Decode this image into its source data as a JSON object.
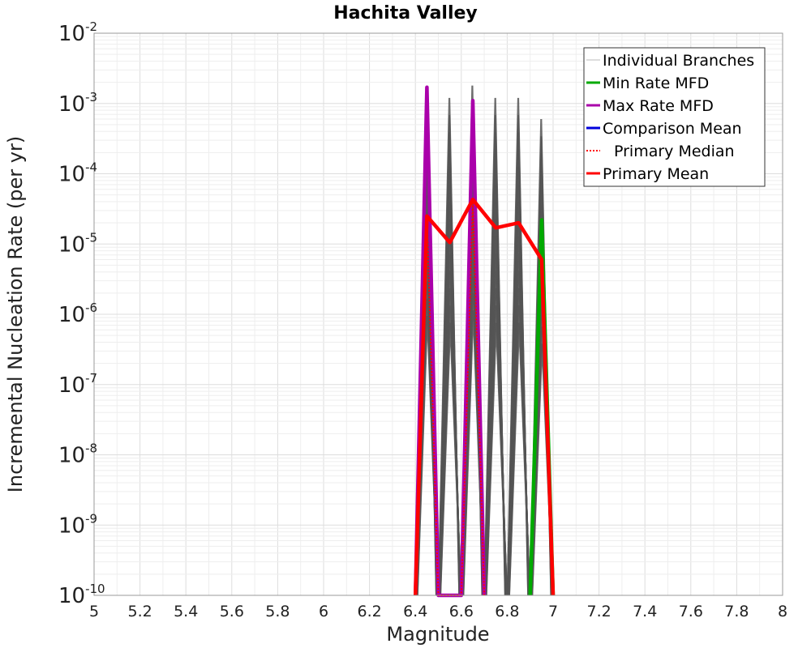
{
  "chart_data": {
    "type": "line",
    "title": "Hachita Valley",
    "xlabel": "Magnitude",
    "ylabel": "Incremental Nucleation Rate (per yr)",
    "xlim": [
      5,
      8
    ],
    "ylim": [
      1e-10,
      0.01
    ],
    "yscale": "log",
    "grid": true,
    "legend_position": "top-right",
    "x_ticks": [
      "5",
      "5.2",
      "5.4",
      "5.6",
      "5.8",
      "6",
      "6.2",
      "6.4",
      "6.6",
      "6.8",
      "7",
      "7.2",
      "7.4",
      "7.6",
      "7.8",
      "8"
    ],
    "y_ticks": [
      {
        "base": "10",
        "exp": "-10"
      },
      {
        "base": "10",
        "exp": "-9"
      },
      {
        "base": "10",
        "exp": "-8"
      },
      {
        "base": "10",
        "exp": "-7"
      },
      {
        "base": "10",
        "exp": "-6"
      },
      {
        "base": "10",
        "exp": "-5"
      },
      {
        "base": "10",
        "exp": "-4"
      },
      {
        "base": "10",
        "exp": "-3"
      },
      {
        "base": "10",
        "exp": "-2"
      }
    ],
    "series": [
      {
        "name": "Individual Branches",
        "style": "thin",
        "color": "#555555",
        "peaks": [
          {
            "x": 6.45,
            "y": 0.0015
          },
          {
            "x": 6.55,
            "y": 0.0012
          },
          {
            "x": 6.65,
            "y": 0.0018
          },
          {
            "x": 6.75,
            "y": 0.0012
          },
          {
            "x": 6.85,
            "y": 0.0012
          },
          {
            "x": 6.95,
            "y": 0.0006
          }
        ]
      },
      {
        "name": "Min Rate MFD",
        "style": "solid",
        "color": "#00aa00",
        "points": [
          [
            6.9,
            1e-10
          ],
          [
            6.95,
            2.2e-05
          ],
          [
            7.0,
            1e-10
          ]
        ]
      },
      {
        "name": "Max Rate MFD",
        "style": "solid",
        "color": "#aa00aa",
        "points": [
          [
            6.4,
            1e-10
          ],
          [
            6.45,
            0.0017
          ],
          [
            6.5,
            1e-10
          ],
          [
            6.6,
            1e-10
          ],
          [
            6.65,
            0.0011
          ],
          [
            6.7,
            1e-10
          ]
        ]
      },
      {
        "name": "Comparison Mean",
        "style": "solid",
        "color": "#0000dd",
        "points": []
      },
      {
        "name": "Primary Median",
        "style": "dotted",
        "color": "#ff0000",
        "points": [
          [
            6.4,
            1e-10
          ],
          [
            6.45,
            2.5e-05
          ],
          [
            6.5,
            1e-10
          ],
          [
            6.6,
            1e-10
          ],
          [
            6.65,
            4e-05
          ],
          [
            6.7,
            1e-10
          ]
        ]
      },
      {
        "name": "Primary Mean",
        "style": "solid",
        "color": "#ff0000",
        "points": [
          [
            6.4,
            1e-10
          ],
          [
            6.45,
            2.5e-05
          ],
          [
            6.55,
            1.05e-05
          ],
          [
            6.65,
            4.3e-05
          ],
          [
            6.75,
            1.7e-05
          ],
          [
            6.85,
            2e-05
          ],
          [
            6.95,
            6e-06
          ],
          [
            7.0,
            1e-10
          ]
        ]
      }
    ]
  }
}
